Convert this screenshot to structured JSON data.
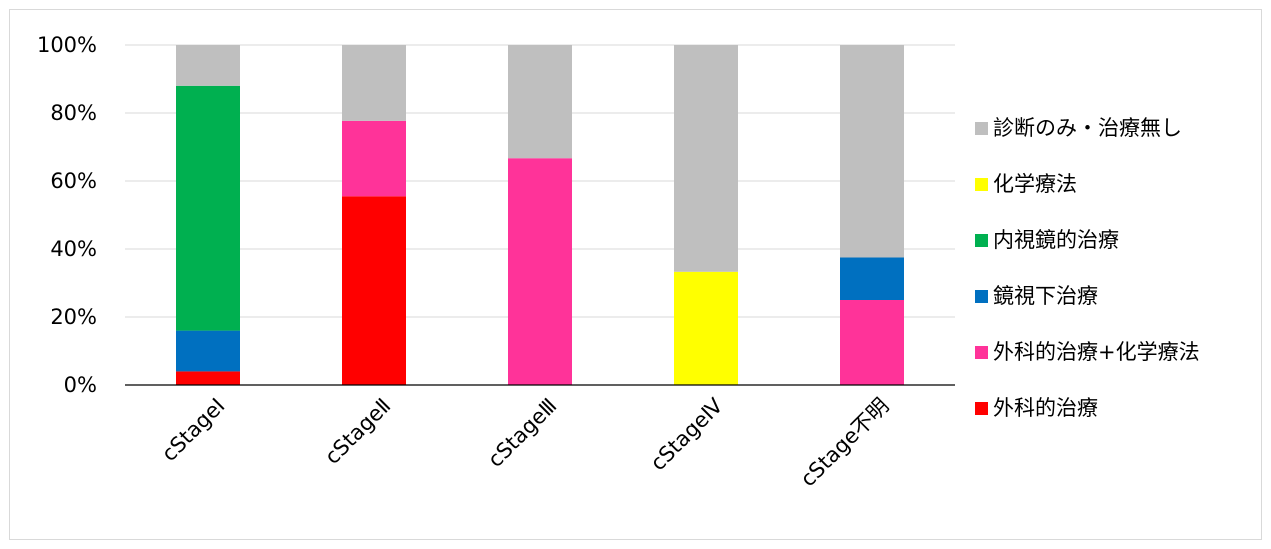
{
  "chart_data": {
    "type": "bar",
    "stacked": true,
    "percent": true,
    "categories": [
      "cStageⅠ",
      "cStageⅡ",
      "cStageⅢ",
      "cStageⅣ",
      "cStage不明"
    ],
    "ylim": [
      0,
      100
    ],
    "yticks": [
      "0%",
      "20%",
      "40%",
      "60%",
      "80%",
      "100%"
    ],
    "ytick_values": [
      0,
      20,
      40,
      60,
      80,
      100
    ],
    "grid": true,
    "legend_position": "right",
    "series": [
      {
        "name": "外科的治療",
        "color": "#ff0000",
        "values": [
          4,
          55.5,
          0,
          0,
          0
        ]
      },
      {
        "name": "外科的治療+化学療法",
        "color": "#ff3399",
        "values": [
          0,
          22.2,
          66.7,
          0,
          25
        ]
      },
      {
        "name": "鏡視下治療",
        "color": "#0070c0",
        "values": [
          12,
          0,
          0,
          0,
          12.5
        ]
      },
      {
        "name": "内視鏡的治療",
        "color": "#00b050",
        "values": [
          72,
          0,
          0,
          0,
          0
        ]
      },
      {
        "name": "化学療法",
        "color": "#ffff00",
        "values": [
          0,
          0,
          0,
          33.3,
          0
        ]
      },
      {
        "name": "診断のみ・治療無し",
        "color": "#bfbfbf",
        "values": [
          12,
          22.3,
          33.3,
          66.7,
          62.5
        ]
      }
    ],
    "legend_order": [
      "診断のみ・治療無し",
      "化学療法",
      "内視鏡的治療",
      "鏡視下治療",
      "外科的治療+化学療法",
      "外科的治療"
    ]
  }
}
